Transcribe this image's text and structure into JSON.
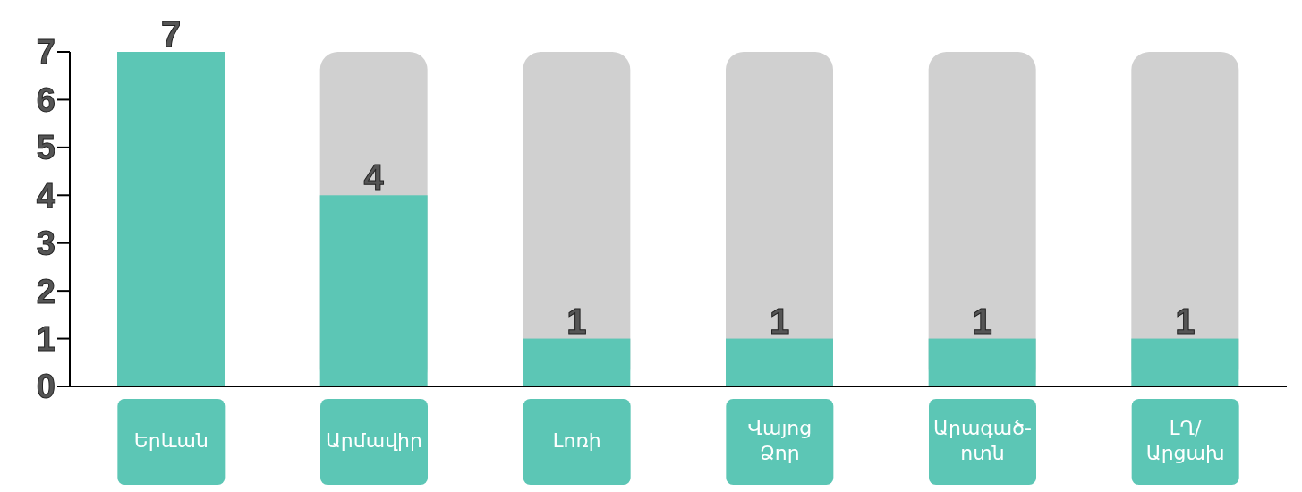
{
  "chart_data": {
    "type": "bar",
    "categories": [
      "Երևան",
      "Արմավիր",
      "Լոռի",
      "Վայոց\nՁոր",
      "Արագած-\nոտն",
      "ԼՂ/\nԱրցախ"
    ],
    "values": [
      7,
      4,
      1,
      1,
      1,
      1
    ],
    "color": "#5cc6b5",
    "ylim": [
      0,
      7
    ],
    "yticks": [
      0,
      1,
      2,
      3,
      4,
      5,
      6,
      7
    ],
    "data_labels": true
  }
}
